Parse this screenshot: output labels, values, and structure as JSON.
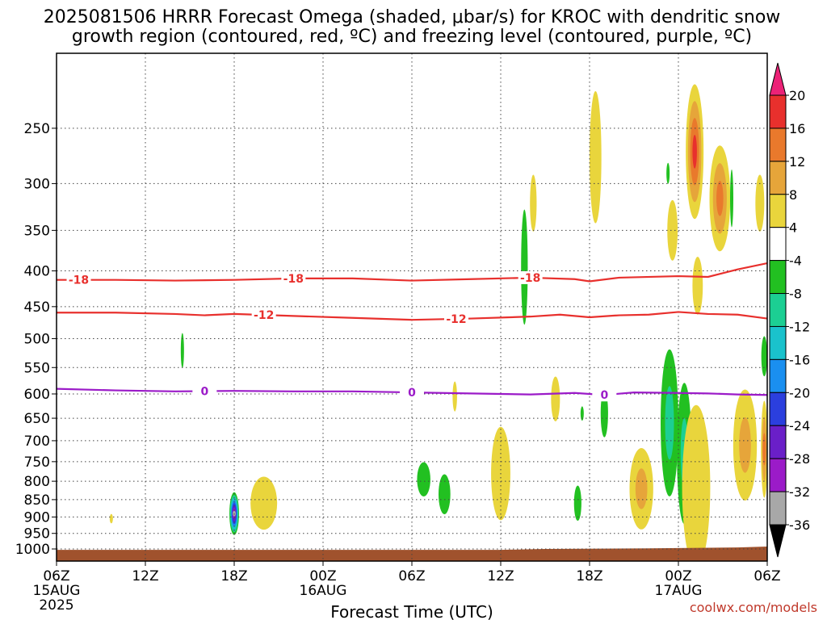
{
  "title_line1": "2025081506 HRRR Forecast Omega (shaded, μbar/s) for KROC with dendritic snow",
  "title_line2": "growth region (contoured, red, ºC) and freezing level (contoured, purple, ºC)",
  "credit": "coolwx.com/models",
  "chart_data": {
    "type": "heatmap",
    "title": "2025081506 HRRR Forecast Omega (shaded, μbar/s) for KROC with dendritic snow growth region (contoured, red, ºC) and freezing level (contoured, purple, ºC)",
    "xlabel": "Forecast Time (UTC)",
    "ylabel": "",
    "x_unit": "hours from 2025-08-15 06Z",
    "xlim": [
      0,
      48
    ],
    "y_unit": "hPa",
    "y_scale": "log",
    "ylim": [
      1040,
      200
    ],
    "grid": true,
    "x_ticks": [
      {
        "v": 0,
        "label": "06Z",
        "sub": [
          "15AUG",
          "2025"
        ]
      },
      {
        "v": 6,
        "label": "12Z",
        "sub": []
      },
      {
        "v": 12,
        "label": "18Z",
        "sub": []
      },
      {
        "v": 18,
        "label": "00Z",
        "sub": [
          "16AUG"
        ]
      },
      {
        "v": 24,
        "label": "06Z",
        "sub": []
      },
      {
        "v": 30,
        "label": "12Z",
        "sub": []
      },
      {
        "v": 36,
        "label": "18Z",
        "sub": []
      },
      {
        "v": 42,
        "label": "00Z",
        "sub": [
          "17AUG"
        ]
      },
      {
        "v": 48,
        "label": "06Z",
        "sub": []
      }
    ],
    "y_ticks": [
      250,
      300,
      350,
      400,
      450,
      500,
      550,
      600,
      650,
      700,
      750,
      800,
      850,
      900,
      950,
      1000
    ],
    "colorbar": {
      "labels": [
        "20",
        "16",
        "12",
        "8",
        "4",
        "-4",
        "-8",
        "-12",
        "-16",
        "-20",
        "-24",
        "-28",
        "-32",
        "-36"
      ],
      "colors": [
        "#ec2277",
        "#e8302d",
        "#e9792c",
        "#e6a53a",
        "#e9d53c",
        "#ffffff",
        "#22c021",
        "#1ccf93",
        "#1ac2cc",
        "#1a8ff0",
        "#2b3fde",
        "#6a1fc8",
        "#9b1bc8",
        "#a8a8a8",
        "#000000"
      ]
    },
    "contours": [
      {
        "label": "-18",
        "color": "#e8302d",
        "label_x": [
          1.5,
          16,
          32
        ],
        "points": [
          [
            0,
            412
          ],
          [
            4,
            412
          ],
          [
            8,
            413
          ],
          [
            12,
            412
          ],
          [
            16,
            410
          ],
          [
            20,
            410
          ],
          [
            24,
            413
          ],
          [
            28,
            411
          ],
          [
            32,
            409
          ],
          [
            35,
            411
          ],
          [
            36,
            414
          ],
          [
            38,
            409
          ],
          [
            42,
            407
          ],
          [
            44,
            408
          ],
          [
            46,
            398
          ],
          [
            48,
            390
          ]
        ]
      },
      {
        "label": "-12",
        "color": "#e8302d",
        "label_x": [
          14,
          27
        ],
        "points": [
          [
            0,
            459
          ],
          [
            4,
            459
          ],
          [
            8,
            461
          ],
          [
            10,
            463
          ],
          [
            12,
            461
          ],
          [
            16,
            464
          ],
          [
            20,
            467
          ],
          [
            24,
            470
          ],
          [
            28,
            468
          ],
          [
            32,
            465
          ],
          [
            34,
            462
          ],
          [
            36,
            466
          ],
          [
            38,
            463
          ],
          [
            40,
            462
          ],
          [
            42,
            458
          ],
          [
            44,
            461
          ],
          [
            46,
            462
          ],
          [
            48,
            468
          ]
        ]
      },
      {
        "label": "0",
        "color": "#9b1bc8",
        "label_x": [
          10,
          24,
          37
        ],
        "points": [
          [
            0,
            590
          ],
          [
            4,
            593
          ],
          [
            8,
            595
          ],
          [
            12,
            594
          ],
          [
            16,
            595
          ],
          [
            20,
            595
          ],
          [
            24,
            597
          ],
          [
            28,
            599
          ],
          [
            32,
            601
          ],
          [
            35,
            598
          ],
          [
            37,
            602
          ],
          [
            39,
            597
          ],
          [
            42,
            598
          ],
          [
            44,
            599
          ],
          [
            46,
            601
          ],
          [
            48,
            602
          ]
        ]
      }
    ],
    "omega_cells": [
      {
        "t": 12,
        "p": 890,
        "w": 0.65,
        "ph": 125,
        "v": -34
      },
      {
        "t": 14,
        "p": 860,
        "w": 1.8,
        "ph": 150,
        "v": 6
      },
      {
        "t": 3.7,
        "p": 905,
        "w": 0.2,
        "ph": 28,
        "v": 4
      },
      {
        "t": 8.5,
        "p": 520,
        "w": 0.2,
        "ph": 60,
        "v": -6
      },
      {
        "t": 24.8,
        "p": 795,
        "w": 0.9,
        "ph": 90,
        "v": -6
      },
      {
        "t": 26.2,
        "p": 835,
        "w": 0.8,
        "ph": 110,
        "v": -6
      },
      {
        "t": 26.9,
        "p": 605,
        "w": 0.3,
        "ph": 60,
        "v": 4
      },
      {
        "t": 30,
        "p": 780,
        "w": 1.3,
        "ph": 240,
        "v": 6
      },
      {
        "t": 31.6,
        "p": 395,
        "w": 0.45,
        "ph": 150,
        "v": -6
      },
      {
        "t": 32.2,
        "p": 320,
        "w": 0.45,
        "ph": 60,
        "v": 4
      },
      {
        "t": 33.7,
        "p": 610,
        "w": 0.6,
        "ph": 90,
        "v": 4
      },
      {
        "t": 35.2,
        "p": 860,
        "w": 0.5,
        "ph": 100,
        "v": -6
      },
      {
        "t": 35.5,
        "p": 640,
        "w": 0.2,
        "ph": 30,
        "v": -6
      },
      {
        "t": 36.4,
        "p": 275,
        "w": 0.8,
        "ph": 120,
        "v": 4
      },
      {
        "t": 37,
        "p": 640,
        "w": 0.5,
        "ph": 100,
        "v": -6
      },
      {
        "t": 39.5,
        "p": 820,
        "w": 1.6,
        "ph": 220,
        "v": 10
      },
      {
        "t": 41.4,
        "p": 660,
        "w": 1.2,
        "ph": 320,
        "v": -10
      },
      {
        "t": 41.6,
        "p": 350,
        "w": 0.7,
        "ph": 70,
        "v": 4
      },
      {
        "t": 41.3,
        "p": 290,
        "w": 0.12,
        "ph": 20,
        "v": -6
      },
      {
        "t": 42.4,
        "p": 730,
        "w": 1.0,
        "ph": 340,
        "v": -10
      },
      {
        "t": 43.2,
        "p": 815,
        "w": 1.9,
        "ph": 440,
        "v": 6
      },
      {
        "t": 43.4,
        "p": 945,
        "w": 0.18,
        "ph": 25,
        "v": 4
      },
      {
        "t": 43.1,
        "p": 270,
        "w": 1.2,
        "ph": 120,
        "v": 18
      },
      {
        "t": 43.3,
        "p": 420,
        "w": 0.7,
        "ph": 80,
        "v": 4
      },
      {
        "t": 44.8,
        "p": 315,
        "w": 1.4,
        "ph": 110,
        "v": 14
      },
      {
        "t": 45.6,
        "p": 315,
        "w": 0.15,
        "ph": 60,
        "v": -6
      },
      {
        "t": 46.5,
        "p": 710,
        "w": 1.6,
        "ph": 260,
        "v": 10
      },
      {
        "t": 47.5,
        "p": 320,
        "w": 0.6,
        "ph": 60,
        "v": 4
      },
      {
        "t": 47.8,
        "p": 720,
        "w": 0.45,
        "ph": 230,
        "v": 14
      },
      {
        "t": 47.8,
        "p": 530,
        "w": 0.4,
        "ph": 70,
        "v": -6
      }
    ],
    "terrain_color": "#a0522d",
    "terrain": [
      [
        0,
        1003
      ],
      [
        24,
        1003
      ],
      [
        30,
        1003
      ],
      [
        33,
        1000
      ],
      [
        40,
        998
      ],
      [
        46,
        995
      ],
      [
        48,
        992
      ]
    ]
  }
}
